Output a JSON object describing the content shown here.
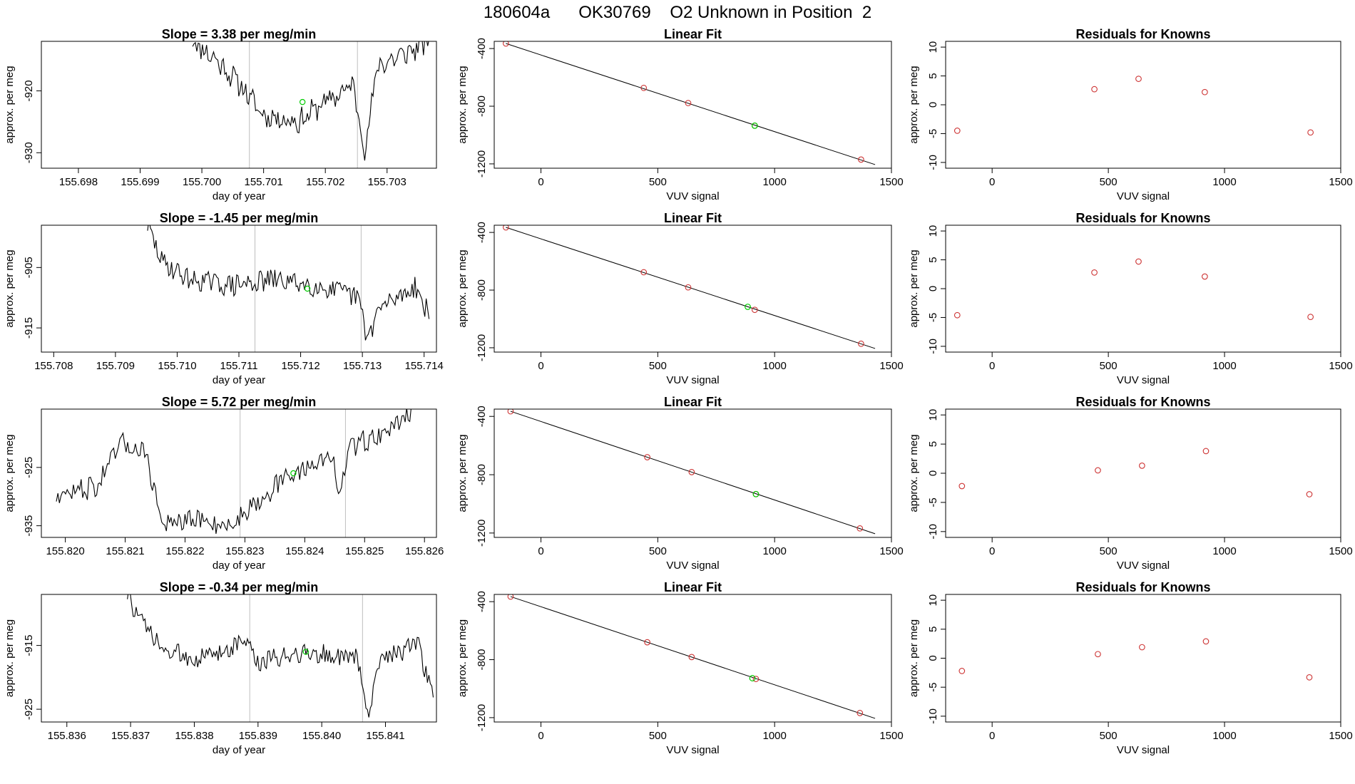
{
  "page_title": "180604a      OK30769    O2 Unknown in Position  2",
  "colors": {
    "line": "#000000",
    "frame": "#000000",
    "vline": "#bebebe",
    "known_point": "#cd3333",
    "unknown_point": "#00cc00"
  },
  "chart_data": [
    {
      "type": "line",
      "title": "Slope =  3.38  per meg/min",
      "xlabel": "day of year",
      "ylabel": "approx. per meg",
      "xlim": [
        155.6974,
        155.7038
      ],
      "ylim": [
        -932.5,
        -912.0
      ],
      "xticks": [
        155.698,
        155.699,
        155.7,
        155.701,
        155.702,
        155.703
      ],
      "xtick_labels": [
        "155.698",
        "155.699",
        "155.700",
        "155.701",
        "155.702",
        "155.703"
      ],
      "yticks": [
        -920,
        -930
      ],
      "ytick_labels": [
        "-920",
        "-930"
      ],
      "vlines": [
        155.70077,
        155.70252
      ],
      "marker": {
        "x": 155.70163,
        "y": -921.8
      },
      "trace": {
        "x0": 155.69985,
        "x1": 155.70368,
        "n": 170,
        "base": -921.5,
        "amp": 4.2,
        "noise": 1.6,
        "seed": 11,
        "anchors": [
          [
            0.0,
            -912
          ],
          [
            0.1,
            -915
          ],
          [
            0.2,
            -919
          ],
          [
            0.3,
            -924
          ],
          [
            0.45,
            -925
          ],
          [
            0.55,
            -922
          ],
          [
            0.6,
            -921
          ],
          [
            0.68,
            -919
          ],
          [
            0.73,
            -930
          ],
          [
            0.78,
            -916
          ],
          [
            0.9,
            -914
          ],
          [
            1.0,
            -912
          ]
        ]
      }
    },
    {
      "type": "scatter",
      "title": "Linear Fit",
      "xlabel": "VUV signal",
      "ylabel": "approx. per meg",
      "xlim": [
        -200,
        1500
      ],
      "ylim": [
        -1230,
        -350
      ],
      "xticks": [
        0,
        500,
        1000,
        1500
      ],
      "xtick_labels": [
        "0",
        "500",
        "1000",
        "1500"
      ],
      "yticks": [
        -400,
        -800,
        -1200
      ],
      "ytick_labels": [
        "-400",
        "-800",
        "-1200"
      ],
      "fit": {
        "x": [
          -150,
          1430
        ],
        "y": [
          -365,
          -1205
        ]
      },
      "known": {
        "x": [
          -150,
          440,
          630,
          915,
          1370
        ],
        "y": [
          -365,
          -673,
          -778,
          -935,
          -1170
        ]
      },
      "unknown": {
        "x": [
          915
        ],
        "y": [
          -935
        ]
      }
    },
    {
      "type": "scatter",
      "title": "Residuals for Knowns",
      "xlabel": "VUV signal",
      "ylabel": "approx. per meg",
      "xlim": [
        -200,
        1500
      ],
      "ylim": [
        -11,
        11
      ],
      "xticks": [
        0,
        500,
        1000,
        1500
      ],
      "xtick_labels": [
        "0",
        "500",
        "1000",
        "1500"
      ],
      "yticks": [
        10,
        5,
        0,
        -5,
        -10
      ],
      "ytick_labels": [
        "10",
        "5",
        "0",
        "-5",
        "-10"
      ],
      "known": {
        "x": [
          -150,
          440,
          630,
          915,
          1370
        ],
        "y": [
          -4.5,
          2.7,
          4.5,
          2.2,
          -4.8
        ]
      }
    },
    {
      "type": "line",
      "title": "Slope =  -1.45  per meg/min",
      "xlabel": "day of year",
      "ylabel": "approx. per meg",
      "xlim": [
        155.7078,
        155.7142
      ],
      "ylim": [
        -919.0,
        -898.0
      ],
      "xticks": [
        155.708,
        155.709,
        155.71,
        155.711,
        155.712,
        155.713,
        155.714
      ],
      "xtick_labels": [
        "155.708",
        "155.709",
        "155.710",
        "155.711",
        "155.712",
        "155.713",
        "155.714"
      ],
      "yticks": [
        -905,
        -915
      ],
      "ytick_labels": [
        "-905",
        "-915"
      ],
      "vlines": [
        155.71126,
        155.71298
      ],
      "marker": {
        "x": 155.71211,
        "y": -908.5
      },
      "trace": {
        "x0": 155.70952,
        "x1": 155.71408,
        "n": 200,
        "base": -908.0,
        "amp": 0.8,
        "noise": 1.8,
        "seed": 29,
        "anchors": [
          [
            0.0,
            -898
          ],
          [
            0.05,
            -904
          ],
          [
            0.15,
            -907
          ],
          [
            0.3,
            -908
          ],
          [
            0.45,
            -907
          ],
          [
            0.6,
            -908
          ],
          [
            0.75,
            -910
          ],
          [
            0.78,
            -917
          ],
          [
            0.82,
            -912
          ],
          [
            0.95,
            -908
          ],
          [
            1.0,
            -913
          ]
        ]
      }
    },
    {
      "type": "scatter",
      "title": "Linear Fit",
      "xlabel": "VUV signal",
      "ylabel": "approx. per meg",
      "xlim": [
        -200,
        1500
      ],
      "ylim": [
        -1230,
        -350
      ],
      "xticks": [
        0,
        500,
        1000,
        1500
      ],
      "xtick_labels": [
        "0",
        "500",
        "1000",
        "1500"
      ],
      "yticks": [
        -400,
        -800,
        -1200
      ],
      "ytick_labels": [
        "-400",
        "-800",
        "-1200"
      ],
      "fit": {
        "x": [
          -150,
          1430
        ],
        "y": [
          -365,
          -1205
        ]
      },
      "known": {
        "x": [
          -150,
          440,
          630,
          915,
          1370
        ],
        "y": [
          -365,
          -676,
          -781,
          -937,
          -1172
        ]
      },
      "unknown": {
        "x": [
          885
        ],
        "y": [
          -916
        ]
      }
    },
    {
      "type": "scatter",
      "title": "Residuals for Knowns",
      "xlabel": "VUV signal",
      "ylabel": "approx. per meg",
      "xlim": [
        -200,
        1500
      ],
      "ylim": [
        -11,
        11
      ],
      "xticks": [
        0,
        500,
        1000,
        1500
      ],
      "xtick_labels": [
        "0",
        "500",
        "1000",
        "1500"
      ],
      "yticks": [
        10,
        5,
        0,
        -5,
        -10
      ],
      "ytick_labels": [
        "10",
        "5",
        "0",
        "-5",
        "-10"
      ],
      "known": {
        "x": [
          -150,
          440,
          630,
          915,
          1370
        ],
        "y": [
          -4.6,
          2.8,
          4.7,
          2.1,
          -4.9
        ]
      }
    },
    {
      "type": "line",
      "title": "Slope =  5.72  per meg/min",
      "xlabel": "day of year",
      "ylabel": "approx. per meg",
      "xlim": [
        155.8196,
        155.8262
      ],
      "ylim": [
        -937.0,
        -915.0
      ],
      "xticks": [
        155.82,
        155.821,
        155.822,
        155.823,
        155.824,
        155.825,
        155.826
      ],
      "xtick_labels": [
        "155.820",
        "155.821",
        "155.822",
        "155.823",
        "155.824",
        "155.825",
        "155.826"
      ],
      "yticks": [
        -925,
        -935
      ],
      "ytick_labels": [
        "-925",
        "-935"
      ],
      "vlines": [
        155.82292,
        155.82468
      ],
      "marker": {
        "x": 155.82381,
        "y": -926.0
      },
      "trace": {
        "x0": 155.81985,
        "x1": 155.82578,
        "n": 230,
        "base": -928.0,
        "amp": 3.0,
        "noise": 1.7,
        "seed": 47,
        "anchors": [
          [
            0.0,
            -930
          ],
          [
            0.12,
            -928
          ],
          [
            0.18,
            -921
          ],
          [
            0.25,
            -922
          ],
          [
            0.3,
            -935
          ],
          [
            0.4,
            -934
          ],
          [
            0.5,
            -935
          ],
          [
            0.52,
            -933
          ],
          [
            0.62,
            -928
          ],
          [
            0.7,
            -925
          ],
          [
            0.78,
            -923
          ],
          [
            0.8,
            -931
          ],
          [
            0.82,
            -922
          ],
          [
            0.95,
            -918
          ],
          [
            1.0,
            -915
          ]
        ]
      }
    },
    {
      "type": "scatter",
      "title": "Linear Fit",
      "xlabel": "VUV signal",
      "ylabel": "approx. per meg",
      "xlim": [
        -200,
        1500
      ],
      "ylim": [
        -1230,
        -350
      ],
      "xticks": [
        0,
        500,
        1000,
        1500
      ],
      "xtick_labels": [
        "0",
        "500",
        "1000",
        "1500"
      ],
      "yticks": [
        -400,
        -800,
        -1200
      ],
      "ytick_labels": [
        "-400",
        "-800",
        "-1200"
      ],
      "fit": {
        "x": [
          -130,
          1430
        ],
        "y": [
          -365,
          -1205
        ]
      },
      "known": {
        "x": [
          -130,
          455,
          645,
          920,
          1365
        ],
        "y": [
          -365,
          -680,
          -782,
          -933,
          -1168
        ]
      },
      "unknown": {
        "x": [
          920
        ],
        "y": [
          -933
        ]
      }
    },
    {
      "type": "scatter",
      "title": "Residuals for Knowns",
      "xlabel": "VUV signal",
      "ylabel": "approx. per meg",
      "xlim": [
        -200,
        1500
      ],
      "ylim": [
        -11,
        11
      ],
      "xticks": [
        0,
        500,
        1000,
        1500
      ],
      "xtick_labels": [
        "0",
        "500",
        "1000",
        "1500"
      ],
      "yticks": [
        10,
        5,
        0,
        -5,
        -10
      ],
      "ytick_labels": [
        "10",
        "5",
        "0",
        "-5",
        "-10"
      ],
      "known": {
        "x": [
          -130,
          455,
          645,
          920,
          1365
        ],
        "y": [
          -2.2,
          0.5,
          1.3,
          3.8,
          -3.6
        ]
      }
    },
    {
      "type": "line",
      "title": "Slope =  -0.34  per meg/min",
      "xlabel": "day of year",
      "ylabel": "approx. per meg",
      "xlim": [
        155.8356,
        155.8418
      ],
      "ylim": [
        -927.0,
        -907.0
      ],
      "xticks": [
        155.836,
        155.837,
        155.838,
        155.839,
        155.84,
        155.841
      ],
      "xtick_labels": [
        "155.836",
        "155.837",
        "155.838",
        "155.839",
        "155.840",
        "155.841"
      ],
      "yticks": [
        -915,
        -925
      ],
      "ytick_labels": [
        "-915",
        "-925"
      ],
      "vlines": [
        155.83887,
        155.84064
      ],
      "marker": {
        "x": 155.83975,
        "y": -916.0
      },
      "trace": {
        "x0": 155.83695,
        "x1": 155.84175,
        "n": 210,
        "base": -917.0,
        "amp": 0.8,
        "noise": 1.6,
        "seed": 73,
        "anchors": [
          [
            0.0,
            -907
          ],
          [
            0.04,
            -911
          ],
          [
            0.12,
            -916
          ],
          [
            0.25,
            -917
          ],
          [
            0.4,
            -914
          ],
          [
            0.42,
            -918
          ],
          [
            0.55,
            -916
          ],
          [
            0.75,
            -917
          ],
          [
            0.79,
            -926
          ],
          [
            0.82,
            -917
          ],
          [
            0.95,
            -915
          ],
          [
            1.0,
            -923
          ]
        ]
      }
    },
    {
      "type": "scatter",
      "title": "Linear Fit",
      "xlabel": "VUV signal",
      "ylabel": "approx. per meg",
      "xlim": [
        -200,
        1500
      ],
      "ylim": [
        -1230,
        -350
      ],
      "xticks": [
        0,
        500,
        1000,
        1500
      ],
      "xtick_labels": [
        "0",
        "500",
        "1000",
        "1500"
      ],
      "yticks": [
        -400,
        -800,
        -1200
      ],
      "ytick_labels": [
        "-400",
        "-800",
        "-1200"
      ],
      "fit": {
        "x": [
          -130,
          1430
        ],
        "y": [
          -365,
          -1205
        ]
      },
      "known": {
        "x": [
          -130,
          455,
          645,
          920,
          1365
        ],
        "y": [
          -365,
          -680,
          -782,
          -933,
          -1168
        ]
      },
      "unknown": {
        "x": [
          905
        ],
        "y": [
          -928
        ]
      }
    },
    {
      "type": "scatter",
      "title": "Residuals for Knowns",
      "xlabel": "VUV signal",
      "ylabel": "approx. per meg",
      "xlim": [
        -200,
        1500
      ],
      "ylim": [
        -11,
        11
      ],
      "xticks": [
        0,
        500,
        1000,
        1500
      ],
      "xtick_labels": [
        "0",
        "500",
        "1000",
        "1500"
      ],
      "yticks": [
        10,
        5,
        0,
        -5,
        -10
      ],
      "ytick_labels": [
        "10",
        "5",
        "0",
        "-5",
        "-10"
      ],
      "known": {
        "x": [
          -130,
          455,
          645,
          920,
          1365
        ],
        "y": [
          -2.2,
          0.7,
          1.9,
          2.9,
          -3.3
        ]
      }
    }
  ]
}
